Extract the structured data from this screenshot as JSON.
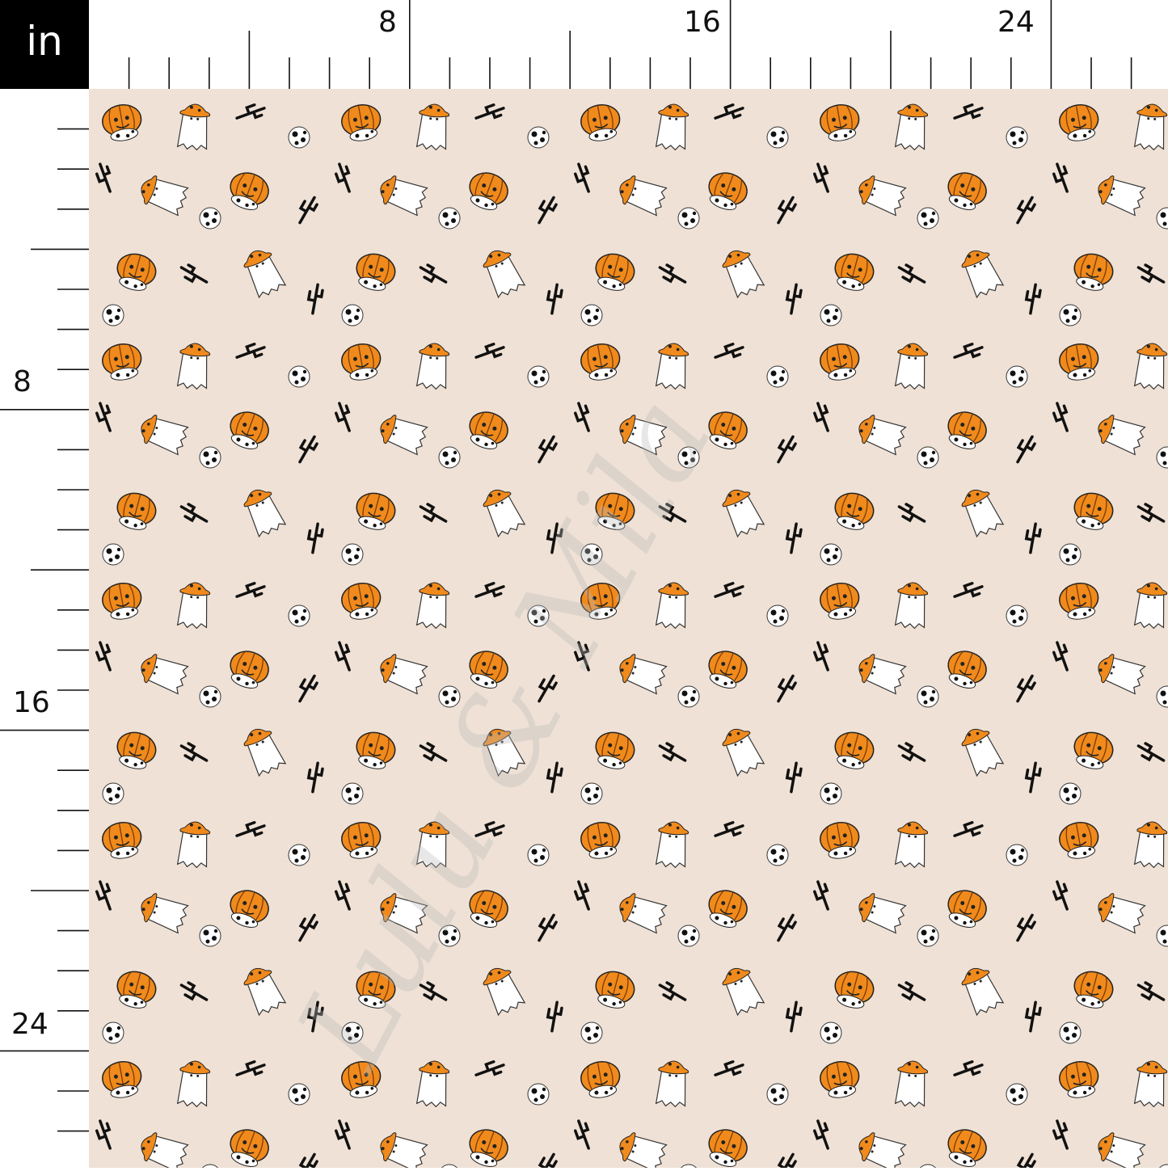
{
  "unit_label": "in",
  "ruler": {
    "top_labels": [
      "8",
      "16",
      "24"
    ],
    "left_labels": [
      "8",
      "16",
      "24"
    ]
  },
  "fabric": {
    "background_color": "#efe1d5",
    "motifs": [
      "pumpkin-cowboy-hat",
      "ghost-cowboy-hat",
      "cactus",
      "cow-print-pumpkin"
    ],
    "colors": {
      "orange": "#f08a1c",
      "white": "#ffffff",
      "black": "#111111"
    },
    "watermark": "Lulu & Mila"
  }
}
